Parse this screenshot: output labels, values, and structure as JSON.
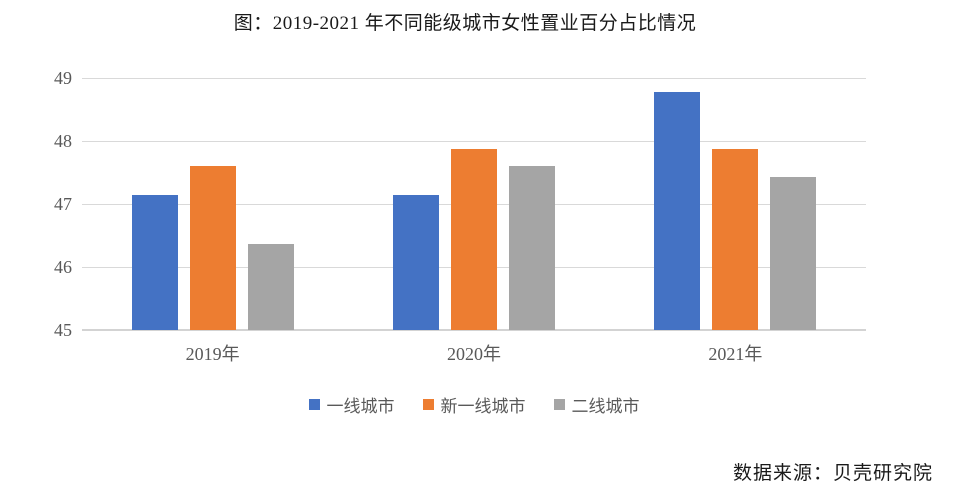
{
  "title": "图：2019-2021 年不同能级城市女性置业百分占比情况",
  "source": "数据来源：贝壳研究院",
  "colors": {
    "series_blue": "#4472C4",
    "series_orange": "#ED7D31",
    "series_gray": "#A5A5A5",
    "gridline": "#D9D9D9",
    "axis_text": "#595959",
    "title_text": "#1A1A1A"
  },
  "chart_data": {
    "type": "bar",
    "title": "图：2019-2021 年不同能级城市女性置业百分占比情况",
    "categories": [
      "2019年",
      "2020年",
      "2021年"
    ],
    "series": [
      {
        "name": "一线城市",
        "color": "#4472C4",
        "values": [
          47.15,
          47.15,
          48.78
        ]
      },
      {
        "name": "新一线城市",
        "color": "#ED7D31",
        "values": [
          47.6,
          47.87,
          47.87
        ]
      },
      {
        "name": "二线城市",
        "color": "#A5A5A5",
        "values": [
          46.37,
          47.6,
          47.43
        ]
      }
    ],
    "xlabel": "",
    "ylabel": "",
    "ylim": [
      45,
      49
    ],
    "yticks": [
      45,
      46,
      47,
      48,
      49
    ],
    "grid": true,
    "legend_position": "bottom",
    "annotation": "数据来源：贝壳研究院"
  }
}
